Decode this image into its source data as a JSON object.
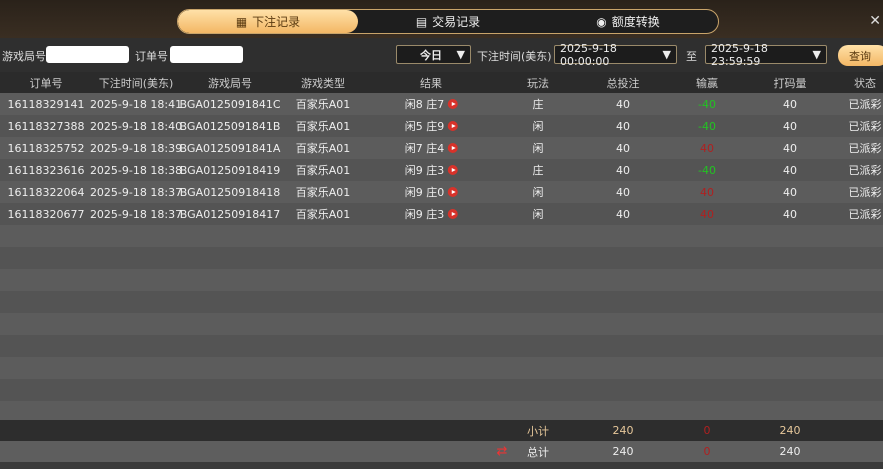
{
  "tabs": [
    {
      "label": "下注记录",
      "icon": "calendar-icon",
      "active": true
    },
    {
      "label": "交易记录",
      "icon": "clipboard-icon"
    },
    {
      "label": "额度转换",
      "icon": "coins-icon"
    }
  ],
  "filter": {
    "game_round_label": "游戏局号",
    "game_round_value": "",
    "order_label": "订单号",
    "order_value": "",
    "period": "今日",
    "time_label": "下注时间(美东)",
    "start": "2025-9-18 00:00:00",
    "to": "至",
    "end": "2025-9-18 23:59:59",
    "query": "查询"
  },
  "columns": [
    "订单号",
    "下注时间(美东)",
    "游戏局号",
    "游戏类型",
    "结果",
    "玩法",
    "总投注",
    "输赢",
    "打码量",
    "状态"
  ],
  "rows": [
    [
      "16118329141",
      "2025-9-18 18:41",
      "BGA0125091841C",
      "百家乐A01",
      "闲8 庄7",
      "庄",
      "40",
      "-40",
      "40",
      "已派彩"
    ],
    [
      "16118327388",
      "2025-9-18 18:40",
      "BGA0125091841B",
      "百家乐A01",
      "闲5 庄9",
      "闲",
      "40",
      "-40",
      "40",
      "已派彩"
    ],
    [
      "16118325752",
      "2025-9-18 18:39",
      "BGA0125091841A",
      "百家乐A01",
      "闲7 庄4",
      "闲",
      "40",
      "40",
      "40",
      "已派彩"
    ],
    [
      "16118323616",
      "2025-9-18 18:38",
      "BGA01250918419",
      "百家乐A01",
      "闲9 庄3",
      "庄",
      "40",
      "-40",
      "40",
      "已派彩"
    ],
    [
      "16118322064",
      "2025-9-18 18:37",
      "BGA01250918418",
      "百家乐A01",
      "闲9 庄0",
      "闲",
      "40",
      "40",
      "40",
      "已派彩"
    ],
    [
      "16118320677",
      "2025-9-18 18:37",
      "BGA01250918417",
      "百家乐A01",
      "闲9 庄3",
      "闲",
      "40",
      "40",
      "40",
      "已派彩"
    ]
  ],
  "subtotal": {
    "label": "小计",
    "bet": "240",
    "win": "0",
    "turnover": "240"
  },
  "total": {
    "label": "总计",
    "bet": "240",
    "win": "0",
    "turnover": "240"
  },
  "colors": {
    "win": "#22c322",
    "loss": "#b02020",
    "accent": "#f3b765"
  }
}
